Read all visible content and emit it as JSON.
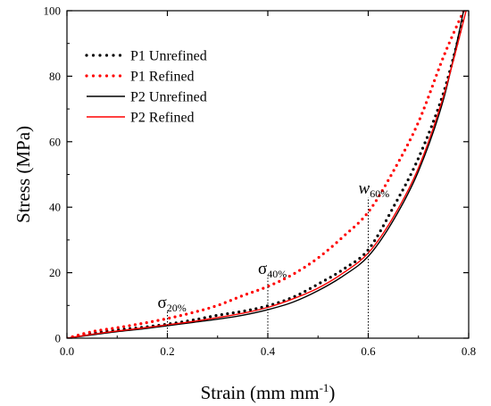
{
  "chart_data": {
    "type": "line",
    "xlabel": {
      "text": "Strain (mm mm",
      "sup": "-1",
      "close": ")"
    },
    "ylabel": "Stress (MPa)",
    "xlim": [
      0,
      0.8
    ],
    "ylim": [
      0,
      100
    ],
    "xticks": [
      {
        "value": 0.0,
        "label": "0.0"
      },
      {
        "value": 0.2,
        "label": "0.2"
      },
      {
        "value": 0.4,
        "label": "0.4"
      },
      {
        "value": 0.6,
        "label": "0.6"
      },
      {
        "value": 0.8,
        "label": "0.8"
      }
    ],
    "yticks": [
      {
        "value": 0,
        "label": "0"
      },
      {
        "value": 20,
        "label": "20"
      },
      {
        "value": 40,
        "label": "40"
      },
      {
        "value": 60,
        "label": "60"
      },
      {
        "value": 80,
        "label": "80"
      },
      {
        "value": 100,
        "label": "100"
      }
    ],
    "grid": false,
    "legend_position": "top-left",
    "series": [
      {
        "name": "P1 Unrefined",
        "color": "#000000",
        "style": "dotted",
        "x": [
          0,
          0.05,
          0.1,
          0.15,
          0.2,
          0.25,
          0.3,
          0.35,
          0.4,
          0.45,
          0.5,
          0.55,
          0.6,
          0.65,
          0.7,
          0.75,
          0.79
        ],
        "y": [
          0,
          1.5,
          2.5,
          3.3,
          4.3,
          5.5,
          7.0,
          8.2,
          9.9,
          12.5,
          16.5,
          21.0,
          27.0,
          40.0,
          55.0,
          75.0,
          98.0
        ]
      },
      {
        "name": "P1 Refined",
        "color": "#ff0000",
        "style": "dotted",
        "x": [
          0,
          0.05,
          0.1,
          0.15,
          0.2,
          0.25,
          0.3,
          0.35,
          0.4,
          0.45,
          0.5,
          0.55,
          0.6,
          0.65,
          0.7,
          0.75,
          0.79
        ],
        "y": [
          0,
          2.0,
          3.2,
          4.5,
          6.0,
          7.8,
          10.0,
          13.0,
          15.8,
          19.5,
          24.5,
          31.0,
          38.5,
          51.0,
          66.0,
          86.0,
          100.0
        ]
      },
      {
        "name": "P2  Unrefined",
        "color": "#000000",
        "style": "solid",
        "x": [
          0,
          0.05,
          0.1,
          0.15,
          0.2,
          0.25,
          0.3,
          0.35,
          0.4,
          0.45,
          0.5,
          0.55,
          0.6,
          0.65,
          0.7,
          0.75,
          0.79
        ],
        "y": [
          0,
          1.0,
          2.0,
          2.8,
          3.8,
          4.8,
          5.8,
          7.0,
          8.7,
          11.0,
          14.5,
          19.0,
          25.0,
          36.0,
          51.0,
          73.0,
          100.0
        ]
      },
      {
        "name": "P2  Refined",
        "color": "#ff0000",
        "style": "solid",
        "x": [
          0,
          0.05,
          0.1,
          0.15,
          0.2,
          0.25,
          0.3,
          0.35,
          0.4,
          0.45,
          0.5,
          0.55,
          0.6,
          0.65,
          0.7,
          0.75,
          0.795
        ],
        "y": [
          0,
          1.2,
          2.2,
          3.1,
          4.1,
          5.1,
          6.3,
          7.6,
          9.4,
          12.0,
          15.3,
          19.9,
          26.0,
          37.0,
          52.0,
          74.0,
          100.0
        ]
      }
    ],
    "annotations": [
      {
        "symbol": "σ",
        "sub": "20%",
        "x": 0.2,
        "y_top": 8.2,
        "italic": false
      },
      {
        "symbol": "σ",
        "sub": "40%",
        "x": 0.4,
        "y_top": 18.5,
        "italic": false
      },
      {
        "symbol": "w",
        "sub": "60%",
        "x": 0.6,
        "y_top": 43.0,
        "italic": true
      }
    ]
  }
}
